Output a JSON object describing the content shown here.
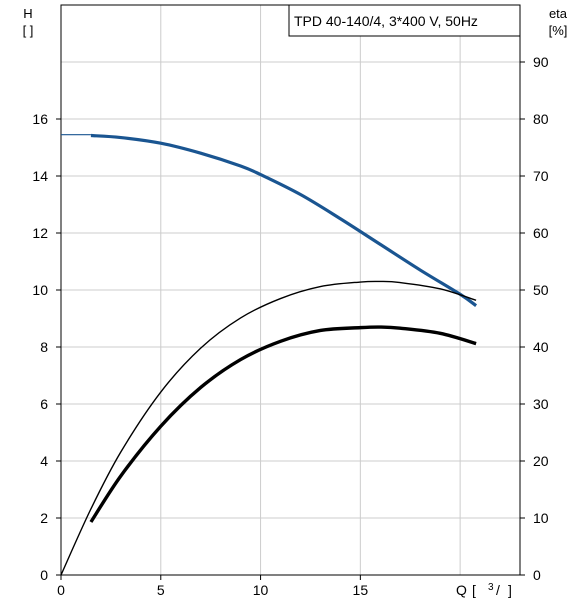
{
  "chart_data": {
    "type": "line",
    "title": "TPD 40-140/4, 3*400 V, 50Hz",
    "xlabel": "Q",
    "xunit_open": "[",
    "xunit_sup": "3",
    "xunit_slash": "/",
    "xunit_close": "]",
    "ylabel_left": "H",
    "yunit_left": "[ ]",
    "ylabel_right": "eta",
    "yunit_right": "[%]",
    "xlim": [
      0,
      23
    ],
    "ylim_left": [
      0,
      20
    ],
    "ylim_right": [
      0,
      100
    ],
    "xticks": [
      0,
      5,
      10,
      15
    ],
    "xtick_labels": [
      "0",
      "5",
      "10",
      "15"
    ],
    "yticks_left": [
      0,
      2,
      4,
      6,
      8,
      10,
      12,
      14,
      16
    ],
    "ytick_labels_left": [
      "0",
      "2",
      "4",
      "6",
      "8",
      "10",
      "12",
      "14",
      "16"
    ],
    "yticks_right": [
      0,
      10,
      20,
      30,
      40,
      50,
      60,
      70,
      80,
      90
    ],
    "ytick_labels_right": [
      "0",
      "10",
      "20",
      "30",
      "40",
      "50",
      "60",
      "70",
      "80",
      "90"
    ],
    "grid": true,
    "colors": {
      "head": "#1a5591",
      "head_extension": "#1a5591",
      "eta_thin": "#000000",
      "eta_thick": "#000000",
      "grid": "#cccccc"
    },
    "series": [
      {
        "axis": "left",
        "style": "head-extension",
        "x": [
          0,
          1.5
        ],
        "y": [
          15.45,
          15.45
        ]
      },
      {
        "axis": "left",
        "style": "head",
        "x": [
          1.5,
          3,
          5,
          7,
          9,
          10,
          12,
          14,
          16,
          18,
          20,
          20.8
        ],
        "y": [
          15.42,
          15.35,
          15.15,
          14.8,
          14.35,
          14.05,
          13.35,
          12.5,
          11.6,
          10.7,
          9.85,
          9.45
        ]
      },
      {
        "axis": "right",
        "style": "eta-thin",
        "x": [
          0,
          1.5,
          3,
          5,
          7,
          9,
          11,
          13,
          15,
          16,
          17,
          19,
          20.8
        ],
        "y": [
          0,
          11.6,
          21.6,
          32.1,
          39.8,
          45.1,
          48.5,
          50.6,
          51.4,
          51.5,
          51.3,
          50.2,
          48.2
        ]
      },
      {
        "axis": "right",
        "style": "eta-thick",
        "x": [
          1.5,
          3,
          5,
          7,
          9,
          11,
          13,
          15,
          16,
          17,
          19,
          20.8
        ],
        "y": [
          9.3,
          17.4,
          26.1,
          32.9,
          37.8,
          41.0,
          42.9,
          43.4,
          43.5,
          43.3,
          42.4,
          40.6
        ]
      }
    ]
  }
}
